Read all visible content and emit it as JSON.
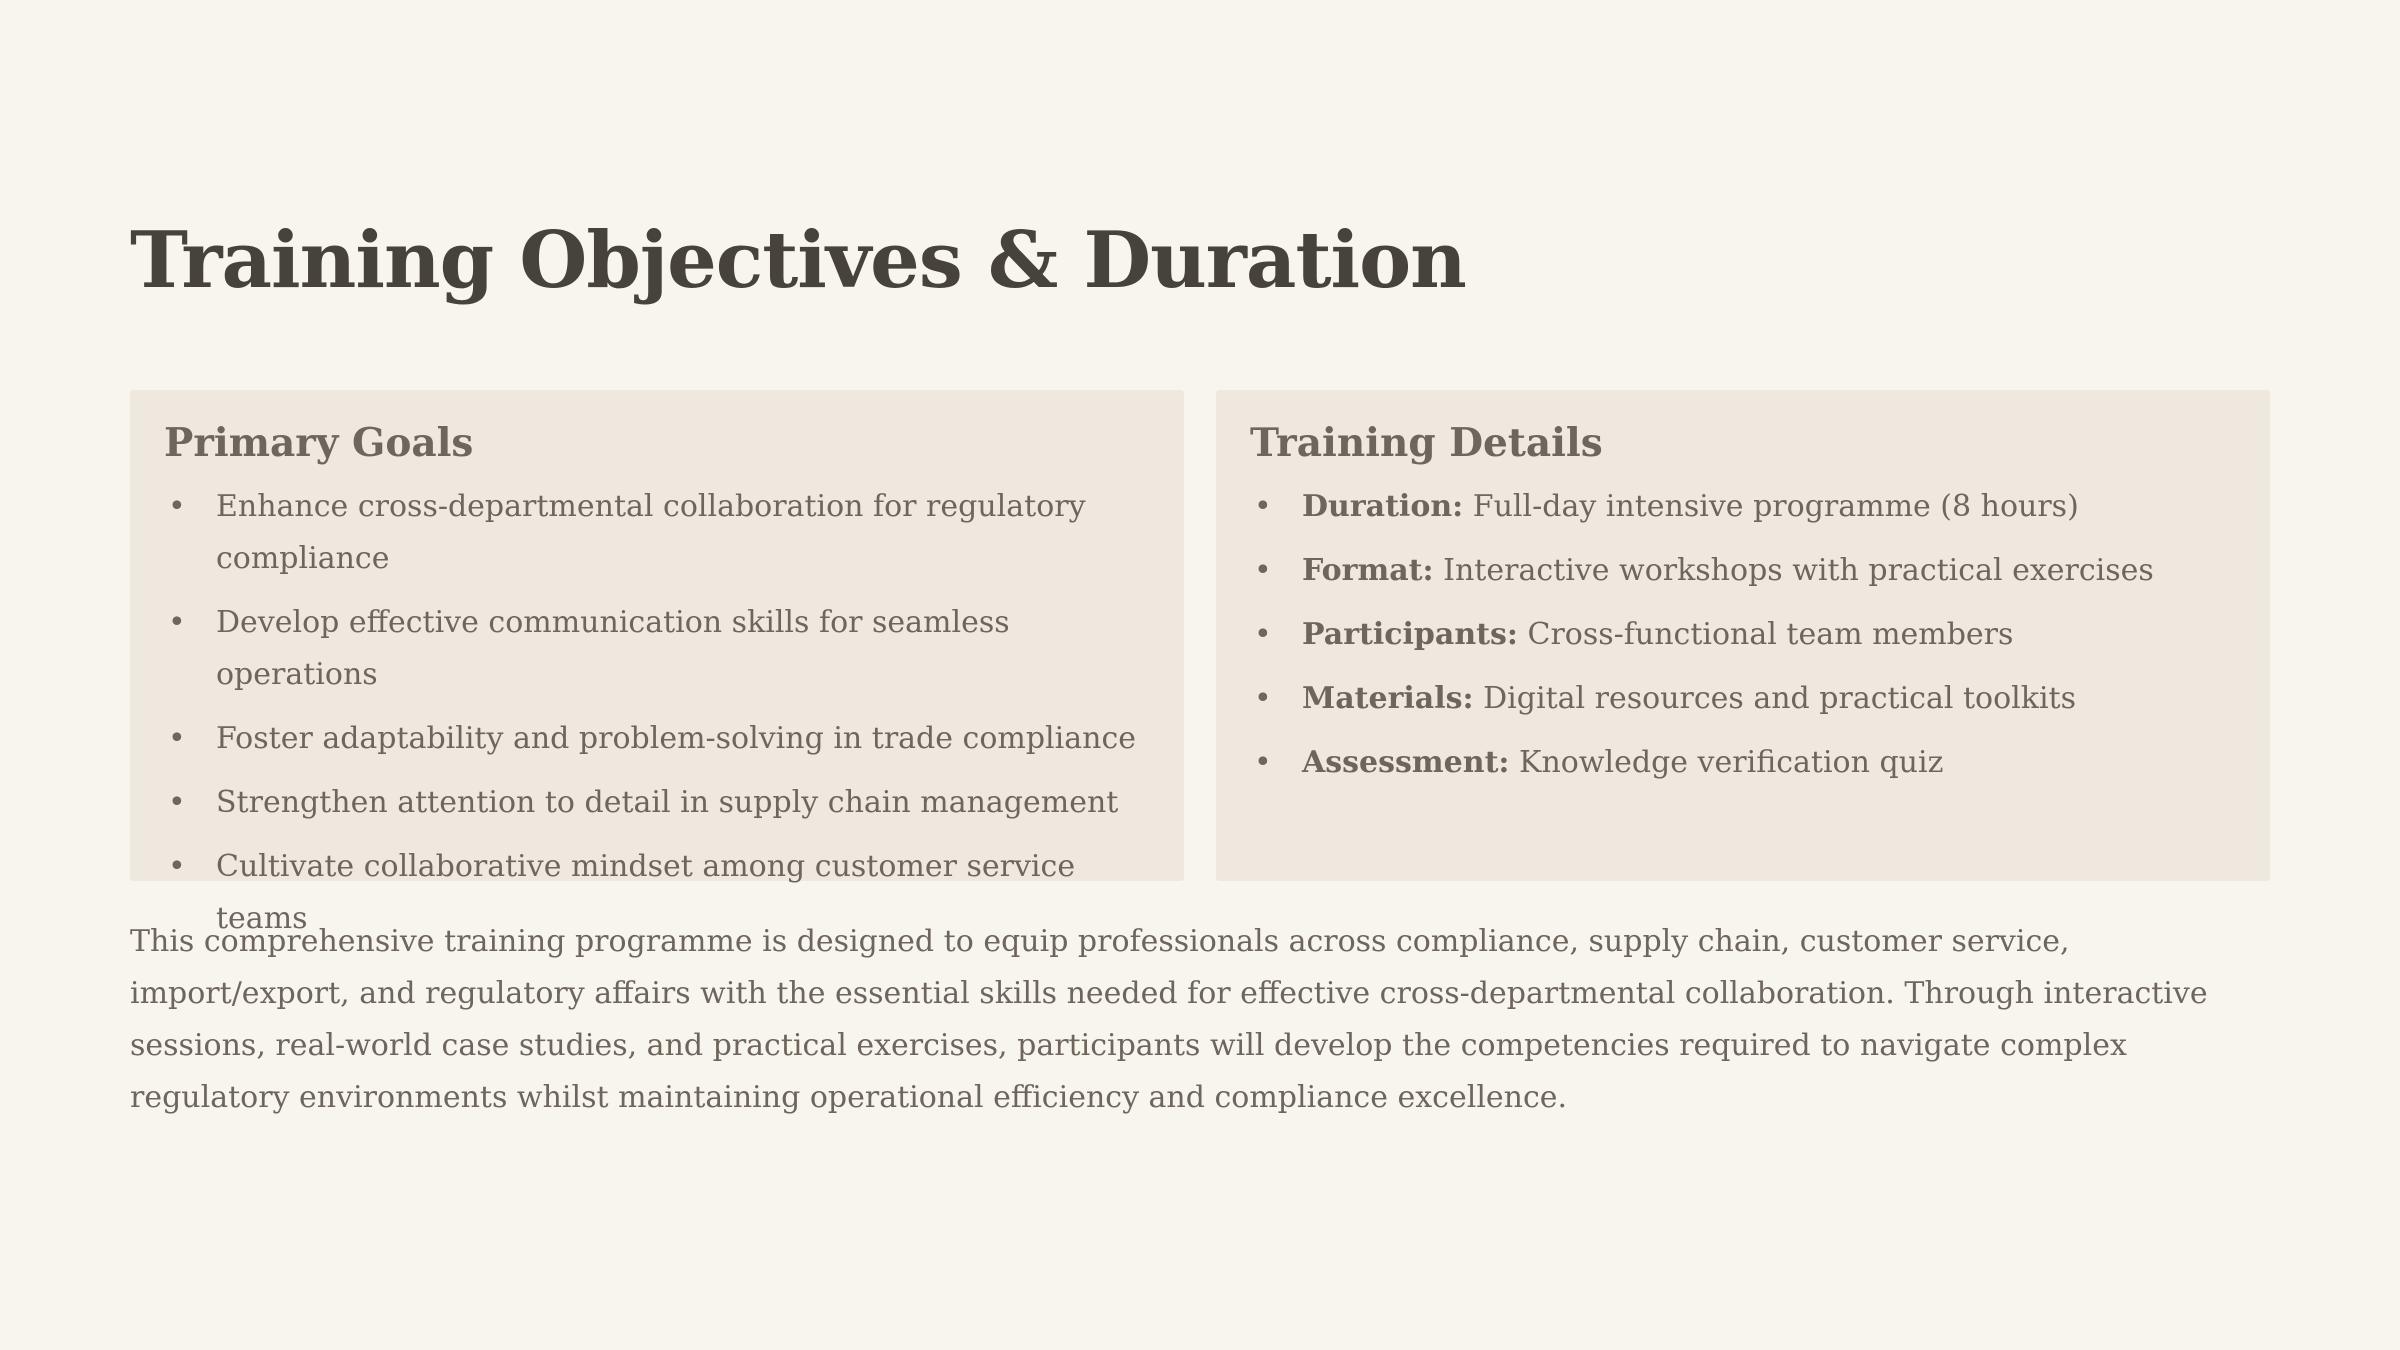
{
  "title": "Training Objectives & Duration",
  "primary_goals": {
    "heading": "Primary Goals",
    "items": [
      "Enhance cross-departmental collaboration for regulatory compliance",
      "Develop effective communication skills for seamless operations",
      "Foster adaptability and problem-solving in trade compliance",
      "Strengthen attention to detail in supply chain management",
      "Cultivate collaborative mindset among customer service teams"
    ]
  },
  "training_details": {
    "heading": "Training Details",
    "items": [
      {
        "key": "Duration:",
        "value": " Full-day intensive programme (8 hours)"
      },
      {
        "key": "Format:",
        "value": " Interactive workshops with practical exercises"
      },
      {
        "key": "Participants:",
        "value": " Cross-functional team members"
      },
      {
        "key": "Materials:",
        "value": " Digital resources and practical toolkits"
      },
      {
        "key": "Assessment:",
        "value": " Knowledge verification quiz"
      }
    ]
  },
  "description": "This comprehensive training programme is designed to equip professionals across compliance, supply chain, customer service, import/export, and regulatory affairs with the essential skills needed for effective cross-departmental collaboration. Through interactive sessions, real-world case studies, and practical exercises, participants will develop the competencies required to navigate complex regulatory environments whilst maintaining operational efficiency and compliance excellence.",
  "colors": {
    "background": "#f8f5ef",
    "panel": "#efe8de",
    "title_text": "#48433a",
    "body_text": "#6e665c"
  }
}
